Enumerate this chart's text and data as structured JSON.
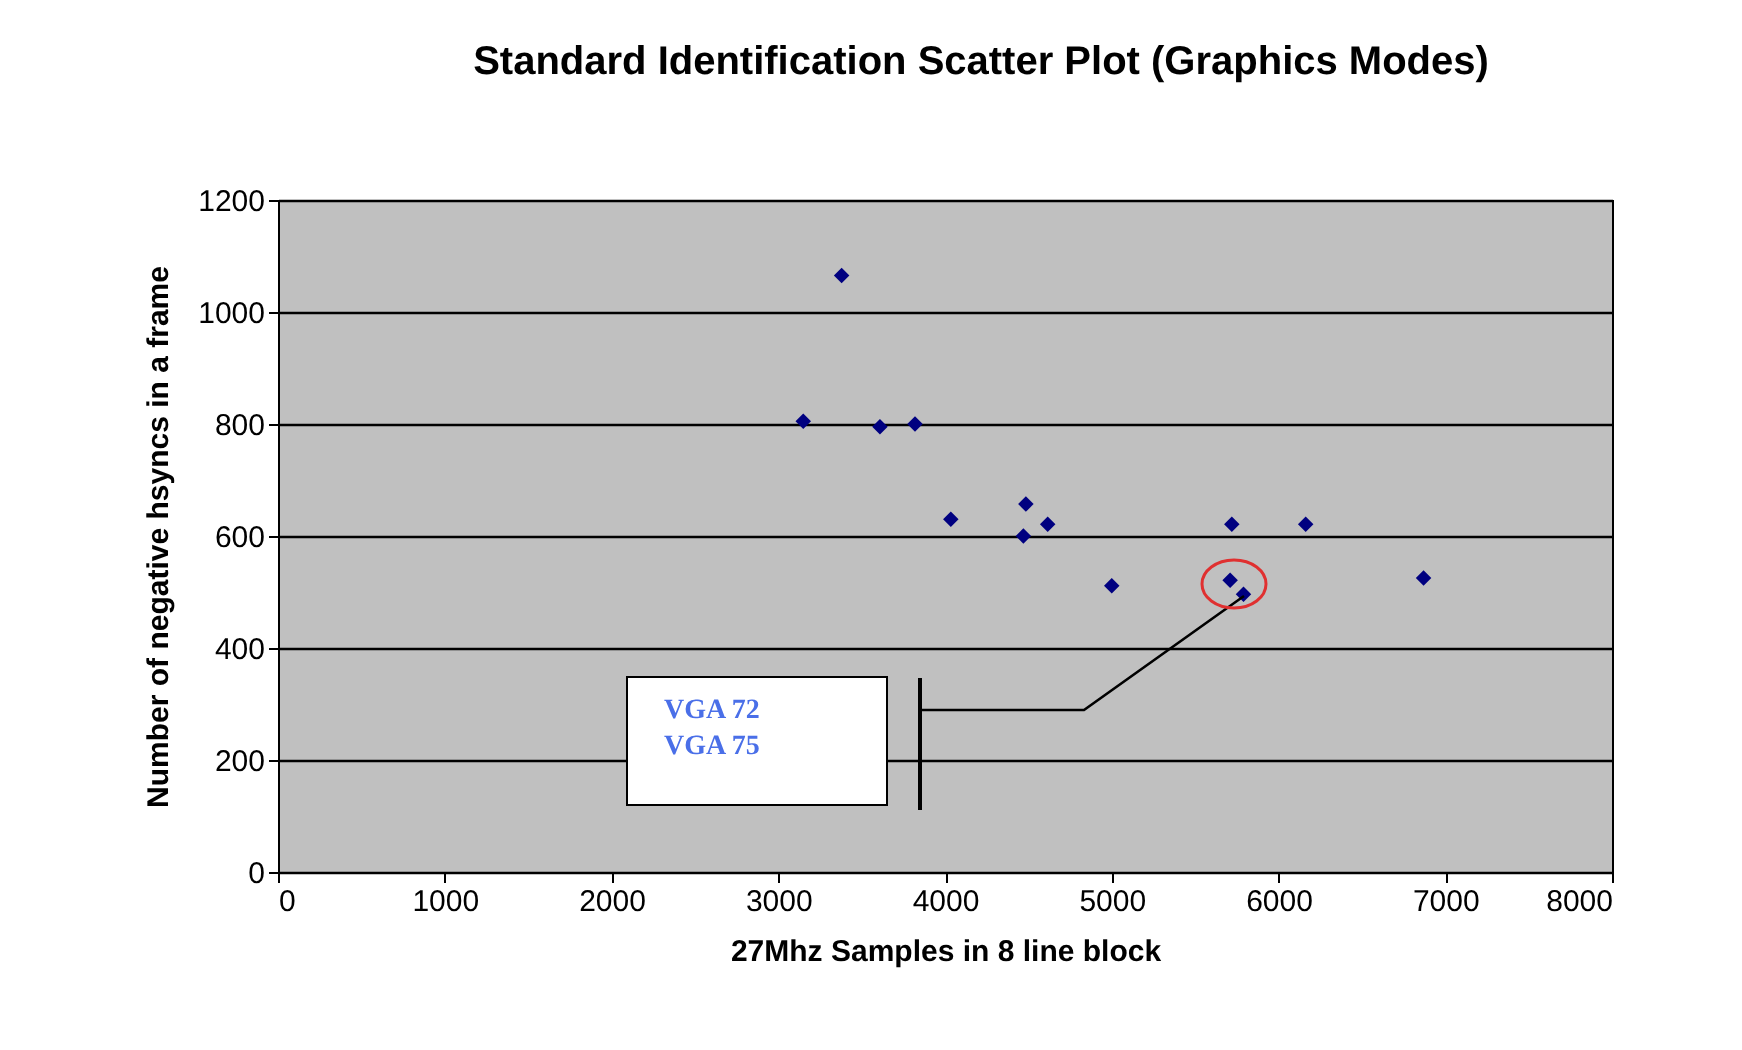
{
  "chart_data": {
    "type": "scatter",
    "title": "Standard Identification Scatter Plot (Graphics Modes)",
    "xlabel": "27Mhz Samples in 8 line block",
    "ylabel": "Number of negative hsyncs in a frame",
    "x": [
      3150,
      3380,
      3610,
      3820,
      4035,
      4470,
      4485,
      4616,
      5000,
      5710,
      5720,
      5790,
      6163,
      6870
    ],
    "series": [
      {
        "color": "#000080",
        "values": [
          805,
          1065,
          795,
          800,
          630,
          600,
          657,
          621,
          511,
          521,
          621,
          496,
          621,
          525
        ]
      }
    ],
    "xlim": [
      0,
      8000
    ],
    "xticks": [
      0,
      1000,
      2000,
      3000,
      4000,
      5000,
      6000,
      7000,
      8000
    ],
    "ylim": [
      0,
      1200
    ],
    "yticks": [
      0,
      200,
      400,
      600,
      800,
      1000,
      1200
    ],
    "grid": "y",
    "marker": "diamond",
    "annotations": [
      "VGA 72",
      "VGA 75"
    ]
  }
}
